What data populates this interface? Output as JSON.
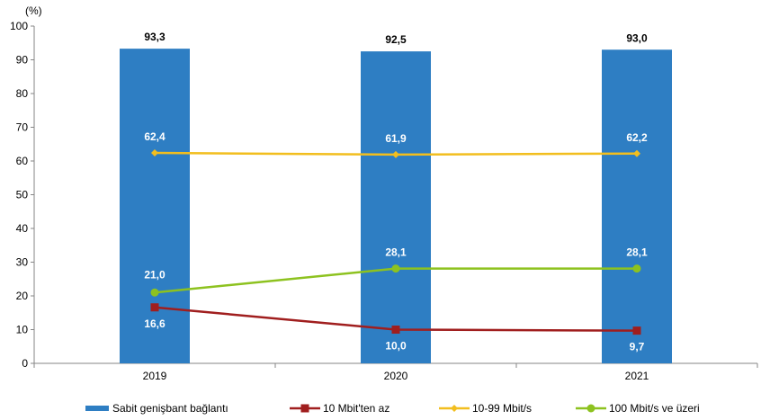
{
  "chart_data": {
    "type": "bar",
    "unit_label": "(%)",
    "categories": [
      "2019",
      "2020",
      "2021"
    ],
    "ylim": [
      0,
      100
    ],
    "yticks": [
      0,
      10,
      20,
      30,
      40,
      50,
      60,
      70,
      80,
      90,
      100
    ],
    "grid": false,
    "legend_position": "bottom",
    "bar_series": {
      "name": "Sabit genişbant bağlantı",
      "color": "#2E7EC3",
      "values": [
        93.3,
        92.5,
        93.0
      ],
      "labels": [
        "93,3",
        "92,5",
        "93,0"
      ]
    },
    "line_series": [
      {
        "name": "10 Mbit'ten az",
        "color": "#A01E1E",
        "marker": "square",
        "values": [
          16.6,
          10.0,
          9.7
        ],
        "labels": [
          "16,6",
          "10,0",
          "9,7"
        ]
      },
      {
        "name": "10-99 Mbit/s",
        "color": "#F2BE1E",
        "marker": "diamond",
        "values": [
          62.4,
          61.9,
          62.2
        ],
        "labels": [
          "62,4",
          "61,9",
          "62,2"
        ]
      },
      {
        "name": "100 Mbit/s ve üzeri",
        "color": "#8DC21F",
        "marker": "circle",
        "values": [
          21.0,
          28.1,
          28.1
        ],
        "labels": [
          "21,0",
          "28,1",
          "28,1"
        ]
      }
    ]
  }
}
